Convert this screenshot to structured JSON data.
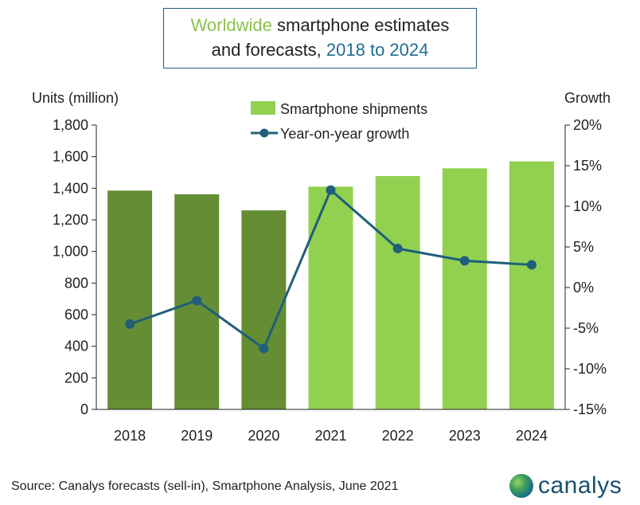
{
  "title": {
    "part1": "Worldwide",
    "part2": " smartphone estimates",
    "part3": "and forecasts, ",
    "part4": "2018 to 2024"
  },
  "chart_data": {
    "type": "bar",
    "categories": [
      "2018",
      "2019",
      "2020",
      "2021",
      "2022",
      "2023",
      "2024"
    ],
    "series": [
      {
        "name": "Smartphone shipments",
        "type": "bar",
        "axis": "left",
        "values": [
          1385,
          1362,
          1260,
          1410,
          1477,
          1526,
          1570
        ],
        "colors": [
          "#658e34",
          "#658e34",
          "#658e34",
          "#92d050",
          "#92d050",
          "#92d050",
          "#92d050"
        ]
      },
      {
        "name": "Year-on-year growth",
        "type": "line",
        "axis": "right",
        "values": [
          -4.5,
          -1.6,
          -7.5,
          12.0,
          4.8,
          3.3,
          2.8
        ],
        "color": "#1f5f7a"
      }
    ],
    "ylabel": "Units (million)",
    "ylabel_right": "Growth",
    "ylim": [
      0,
      1800
    ],
    "yticks": [
      "0",
      "200",
      "400",
      "600",
      "800",
      "1,000",
      "1,200",
      "1,400",
      "1,600",
      "1,800"
    ],
    "ylim_right": [
      -15,
      20
    ],
    "yticks_right": [
      "-15%",
      "-10%",
      "-5%",
      "0%",
      "5%",
      "10%",
      "15%",
      "20%"
    ],
    "grid": false,
    "legend": "top-center"
  },
  "source": "Source: Canalys forecasts (sell-in), Smartphone Analysis, June 2021",
  "logo": {
    "text": "canalys"
  }
}
